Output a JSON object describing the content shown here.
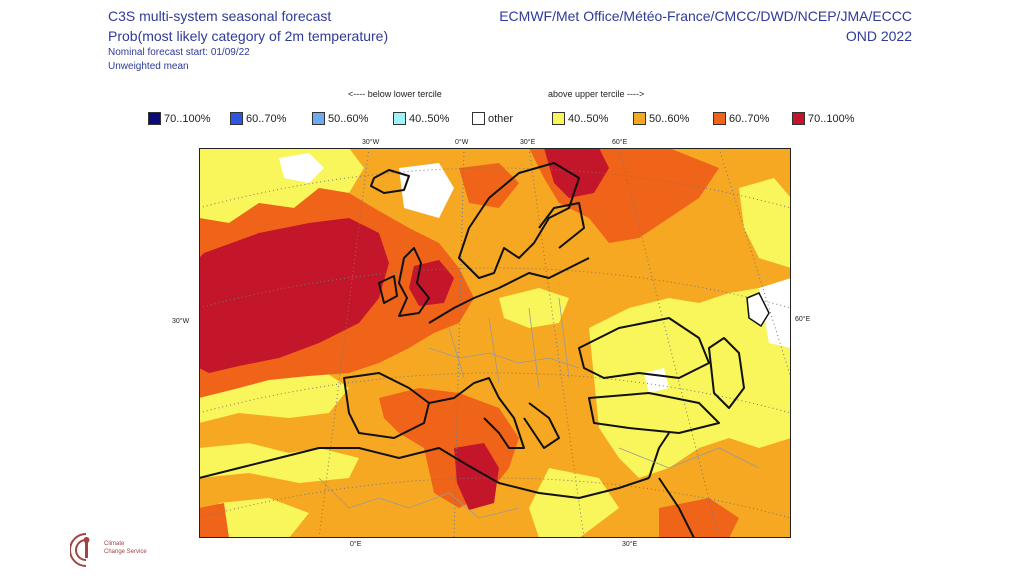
{
  "header": {
    "title_line1": "C3S multi-system seasonal forecast",
    "title_line2": "Prob(most likely category of 2m temperature)",
    "nominal_start": "Nominal forecast start: 01/09/22",
    "mean_type": "Unweighted mean",
    "centres": "ECMWF/Met Office/Météo-France/CMCC/DWD/NCEP/JMA/ECCC",
    "period": "OND 2022"
  },
  "tercile_labels": {
    "below": "<---- below lower tercile",
    "above": "above upper tercile ---->"
  },
  "legend": [
    {
      "label": "70..100%",
      "color": "#0a0a7a"
    },
    {
      "label": "60..70%",
      "color": "#2e56e0"
    },
    {
      "label": "50..60%",
      "color": "#6eaaf0"
    },
    {
      "label": "40..50%",
      "color": "#9ff2f7"
    },
    {
      "label": "other",
      "color": "#ffffff"
    },
    {
      "label": "40..50%",
      "color": "#f8f65a"
    },
    {
      "label": "50..60%",
      "color": "#f6a823"
    },
    {
      "label": "60..70%",
      "color": "#ef6419"
    },
    {
      "label": "70..100%",
      "color": "#c4162a"
    }
  ],
  "map": {
    "region": "Europe / North Atlantic",
    "top_labels": [
      "30°W",
      "0°W",
      "30°E",
      "60°E"
    ],
    "bottom_labels": [
      "0°E",
      "30°E"
    ],
    "left_label": "30°W",
    "right_label": "60°E"
  },
  "logo": {
    "name": "Climate Change Service logo",
    "text_line1": "Climate",
    "text_line2": "Change Service"
  }
}
